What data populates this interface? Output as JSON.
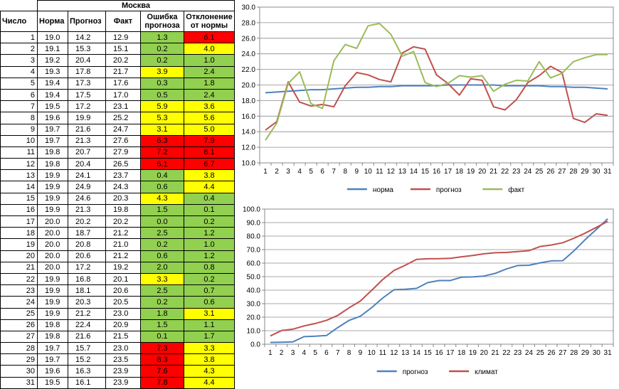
{
  "table": {
    "city": "Москва",
    "headers": [
      "Число",
      "Норма",
      "Прогноз",
      "Факт",
      "Ошибка прогноза",
      "Отклонение от нормы"
    ],
    "colors": {
      "green": "#92d050",
      "yellow": "#ffff00",
      "red": "#ff0000"
    },
    "rows": [
      {
        "day": "1",
        "norm": "19.0",
        "forecast": "14.2",
        "fact": "12.9",
        "err": "1.3",
        "dev": "6.1",
        "err_color": "green",
        "dev_color": "red"
      },
      {
        "day": "2",
        "norm": "19.1",
        "forecast": "15.3",
        "fact": "15.1",
        "err": "0.2",
        "dev": "4.0",
        "err_color": "green",
        "dev_color": "yellow"
      },
      {
        "day": "3",
        "norm": "19.2",
        "forecast": "20.4",
        "fact": "20.2",
        "err": "0.2",
        "dev": "1.0",
        "err_color": "green",
        "dev_color": "green"
      },
      {
        "day": "4",
        "norm": "19.3",
        "forecast": "17.8",
        "fact": "21.7",
        "err": "3.9",
        "dev": "2.4",
        "err_color": "yellow",
        "dev_color": "green"
      },
      {
        "day": "5",
        "norm": "19.4",
        "forecast": "17.3",
        "fact": "17.6",
        "err": "0.3",
        "dev": "1.8",
        "err_color": "green",
        "dev_color": "green"
      },
      {
        "day": "6",
        "norm": "19.4",
        "forecast": "17.5",
        "fact": "17.0",
        "err": "0.5",
        "dev": "2.4",
        "err_color": "green",
        "dev_color": "green"
      },
      {
        "day": "7",
        "norm": "19.5",
        "forecast": "17.2",
        "fact": "23.1",
        "err": "5.9",
        "dev": "3.6",
        "err_color": "yellow",
        "dev_color": "yellow"
      },
      {
        "day": "8",
        "norm": "19.6",
        "forecast": "19.9",
        "fact": "25.2",
        "err": "5.3",
        "dev": "5.6",
        "err_color": "yellow",
        "dev_color": "yellow"
      },
      {
        "day": "9",
        "norm": "19.7",
        "forecast": "21.6",
        "fact": "24.7",
        "err": "3.1",
        "dev": "5.0",
        "err_color": "yellow",
        "dev_color": "yellow"
      },
      {
        "day": "10",
        "norm": "19.7",
        "forecast": "21.3",
        "fact": "27.6",
        "err": "6.3",
        "dev": "7.9",
        "err_color": "red",
        "dev_color": "red"
      },
      {
        "day": "11",
        "norm": "19.8",
        "forecast": "20.7",
        "fact": "27.9",
        "err": "7.2",
        "dev": "8.1",
        "err_color": "red",
        "dev_color": "red"
      },
      {
        "day": "12",
        "norm": "19.8",
        "forecast": "20.4",
        "fact": "26.5",
        "err": "6.1",
        "dev": "6.7",
        "err_color": "red",
        "dev_color": "red"
      },
      {
        "day": "13",
        "norm": "19.9",
        "forecast": "24.1",
        "fact": "23.7",
        "err": "0.4",
        "dev": "3.8",
        "err_color": "green",
        "dev_color": "yellow"
      },
      {
        "day": "14",
        "norm": "19.9",
        "forecast": "24.9",
        "fact": "24.3",
        "err": "0.6",
        "dev": "4.4",
        "err_color": "green",
        "dev_color": "yellow"
      },
      {
        "day": "15",
        "norm": "19.9",
        "forecast": "24.6",
        "fact": "20.3",
        "err": "4.3",
        "dev": "0.4",
        "err_color": "yellow",
        "dev_color": "green"
      },
      {
        "day": "16",
        "norm": "19.9",
        "forecast": "21.3",
        "fact": "19.8",
        "err": "1.5",
        "dev": "0.1",
        "err_color": "green",
        "dev_color": "green"
      },
      {
        "day": "17",
        "norm": "20.0",
        "forecast": "20.2",
        "fact": "20.2",
        "err": "0.0",
        "dev": "0.2",
        "err_color": "green",
        "dev_color": "green"
      },
      {
        "day": "18",
        "norm": "20.0",
        "forecast": "18.7",
        "fact": "21.2",
        "err": "2.5",
        "dev": "1.2",
        "err_color": "green",
        "dev_color": "green"
      },
      {
        "day": "19",
        "norm": "20.0",
        "forecast": "20.8",
        "fact": "21.0",
        "err": "0.2",
        "dev": "1.0",
        "err_color": "green",
        "dev_color": "green"
      },
      {
        "day": "20",
        "norm": "20.0",
        "forecast": "20.6",
        "fact": "21.2",
        "err": "0.6",
        "dev": "1.2",
        "err_color": "green",
        "dev_color": "green"
      },
      {
        "day": "21",
        "norm": "20.0",
        "forecast": "17.2",
        "fact": "19.2",
        "err": "2.0",
        "dev": "0.8",
        "err_color": "green",
        "dev_color": "green"
      },
      {
        "day": "22",
        "norm": "19.9",
        "forecast": "16.8",
        "fact": "20.1",
        "err": "3.3",
        "dev": "0.2",
        "err_color": "yellow",
        "dev_color": "green"
      },
      {
        "day": "23",
        "norm": "19.9",
        "forecast": "18.1",
        "fact": "20.6",
        "err": "2.5",
        "dev": "0.7",
        "err_color": "green",
        "dev_color": "green"
      },
      {
        "day": "24",
        "norm": "19.9",
        "forecast": "20.3",
        "fact": "20.5",
        "err": "0.2",
        "dev": "0.6",
        "err_color": "green",
        "dev_color": "green"
      },
      {
        "day": "25",
        "norm": "19.9",
        "forecast": "21.2",
        "fact": "23.0",
        "err": "1.8",
        "dev": "3.1",
        "err_color": "green",
        "dev_color": "yellow"
      },
      {
        "day": "26",
        "norm": "19.8",
        "forecast": "22.4",
        "fact": "20.9",
        "err": "1.5",
        "dev": "1.1",
        "err_color": "green",
        "dev_color": "green"
      },
      {
        "day": "27",
        "norm": "19.8",
        "forecast": "21.6",
        "fact": "21.5",
        "err": "0.1",
        "dev": "1.7",
        "err_color": "green",
        "dev_color": "green"
      },
      {
        "day": "28",
        "norm": "19.7",
        "forecast": "15.7",
        "fact": "23.0",
        "err": "7.3",
        "dev": "3.3",
        "err_color": "red",
        "dev_color": "yellow"
      },
      {
        "day": "29",
        "norm": "19.7",
        "forecast": "15.2",
        "fact": "23.5",
        "err": "8.3",
        "dev": "3.8",
        "err_color": "red",
        "dev_color": "yellow"
      },
      {
        "day": "30",
        "norm": "19.6",
        "forecast": "16.3",
        "fact": "23.9",
        "err": "7.6",
        "dev": "4.3",
        "err_color": "red",
        "dev_color": "yellow"
      },
      {
        "day": "31",
        "norm": "19.5",
        "forecast": "16.1",
        "fact": "23.9",
        "err": "7.8",
        "dev": "4.4",
        "err_color": "red",
        "dev_color": "yellow"
      }
    ]
  },
  "chart_data": [
    {
      "type": "line",
      "title": "",
      "xlabel": "",
      "ylabel": "",
      "x": [
        1,
        2,
        3,
        4,
        5,
        6,
        7,
        8,
        9,
        10,
        11,
        12,
        13,
        14,
        15,
        16,
        17,
        18,
        19,
        20,
        21,
        22,
        23,
        24,
        25,
        26,
        27,
        28,
        29,
        30,
        31
      ],
      "ylim": [
        10,
        30
      ],
      "yticks": [
        "10.0",
        "12.0",
        "14.0",
        "16.0",
        "18.0",
        "20.0",
        "22.0",
        "24.0",
        "26.0",
        "28.0",
        "30.0"
      ],
      "grid": true,
      "legend": "bottom",
      "series": [
        {
          "name": "норма",
          "color": "#4f81bd",
          "values": [
            19.0,
            19.1,
            19.2,
            19.3,
            19.4,
            19.4,
            19.5,
            19.6,
            19.7,
            19.7,
            19.8,
            19.8,
            19.9,
            19.9,
            19.9,
            19.9,
            20.0,
            20.0,
            20.0,
            20.0,
            20.0,
            19.9,
            19.9,
            19.9,
            19.9,
            19.8,
            19.8,
            19.7,
            19.7,
            19.6,
            19.5
          ]
        },
        {
          "name": "прогноз",
          "color": "#c0504d",
          "values": [
            14.2,
            15.3,
            20.4,
            17.8,
            17.3,
            17.5,
            17.2,
            19.9,
            21.6,
            21.3,
            20.7,
            20.4,
            24.1,
            24.9,
            24.6,
            21.3,
            20.2,
            18.7,
            20.8,
            20.6,
            17.2,
            16.8,
            18.1,
            20.3,
            21.2,
            22.4,
            21.6,
            15.7,
            15.2,
            16.3,
            16.1
          ]
        },
        {
          "name": "факт",
          "color": "#9bbb59",
          "values": [
            12.9,
            15.1,
            20.2,
            21.7,
            17.6,
            17.0,
            23.1,
            25.2,
            24.7,
            27.6,
            27.9,
            26.5,
            23.7,
            24.3,
            20.3,
            19.8,
            20.2,
            21.2,
            21.0,
            21.2,
            19.2,
            20.1,
            20.6,
            20.5,
            23.0,
            20.9,
            21.5,
            23.0,
            23.5,
            23.9,
            23.9
          ]
        }
      ]
    },
    {
      "type": "line",
      "title": "",
      "xlabel": "",
      "ylabel": "",
      "x": [
        1,
        2,
        3,
        4,
        5,
        6,
        7,
        8,
        9,
        10,
        11,
        12,
        13,
        14,
        15,
        16,
        17,
        18,
        19,
        20,
        21,
        22,
        23,
        24,
        25,
        26,
        27,
        28,
        29,
        30,
        31
      ],
      "ylim": [
        0,
        100
      ],
      "yticks": [
        "0.0",
        "10.0",
        "20.0",
        "30.0",
        "40.0",
        "50.0",
        "60.0",
        "70.0",
        "80.0",
        "90.0",
        "100.0"
      ],
      "grid": true,
      "legend": "bottom",
      "series": [
        {
          "name": "прогноз",
          "color": "#4f81bd",
          "values": [
            1.3,
            1.5,
            1.7,
            5.6,
            5.9,
            6.4,
            12.3,
            17.6,
            20.7,
            27.0,
            34.2,
            40.3,
            40.7,
            41.3,
            45.6,
            47.1,
            47.1,
            49.6,
            49.8,
            50.4,
            52.4,
            55.7,
            58.2,
            58.4,
            60.2,
            61.7,
            61.8,
            69.1,
            77.4,
            85.0,
            92.8
          ]
        },
        {
          "name": "климат",
          "color": "#c0504d",
          "values": [
            6.1,
            10.1,
            11.1,
            13.5,
            15.3,
            17.7,
            21.3,
            26.9,
            31.9,
            39.8,
            47.9,
            54.6,
            58.4,
            62.8,
            63.2,
            63.3,
            63.5,
            64.7,
            65.7,
            66.9,
            67.7,
            67.9,
            68.6,
            69.2,
            72.3,
            73.4,
            75.1,
            78.4,
            82.2,
            86.5,
            90.9
          ]
        }
      ]
    }
  ]
}
